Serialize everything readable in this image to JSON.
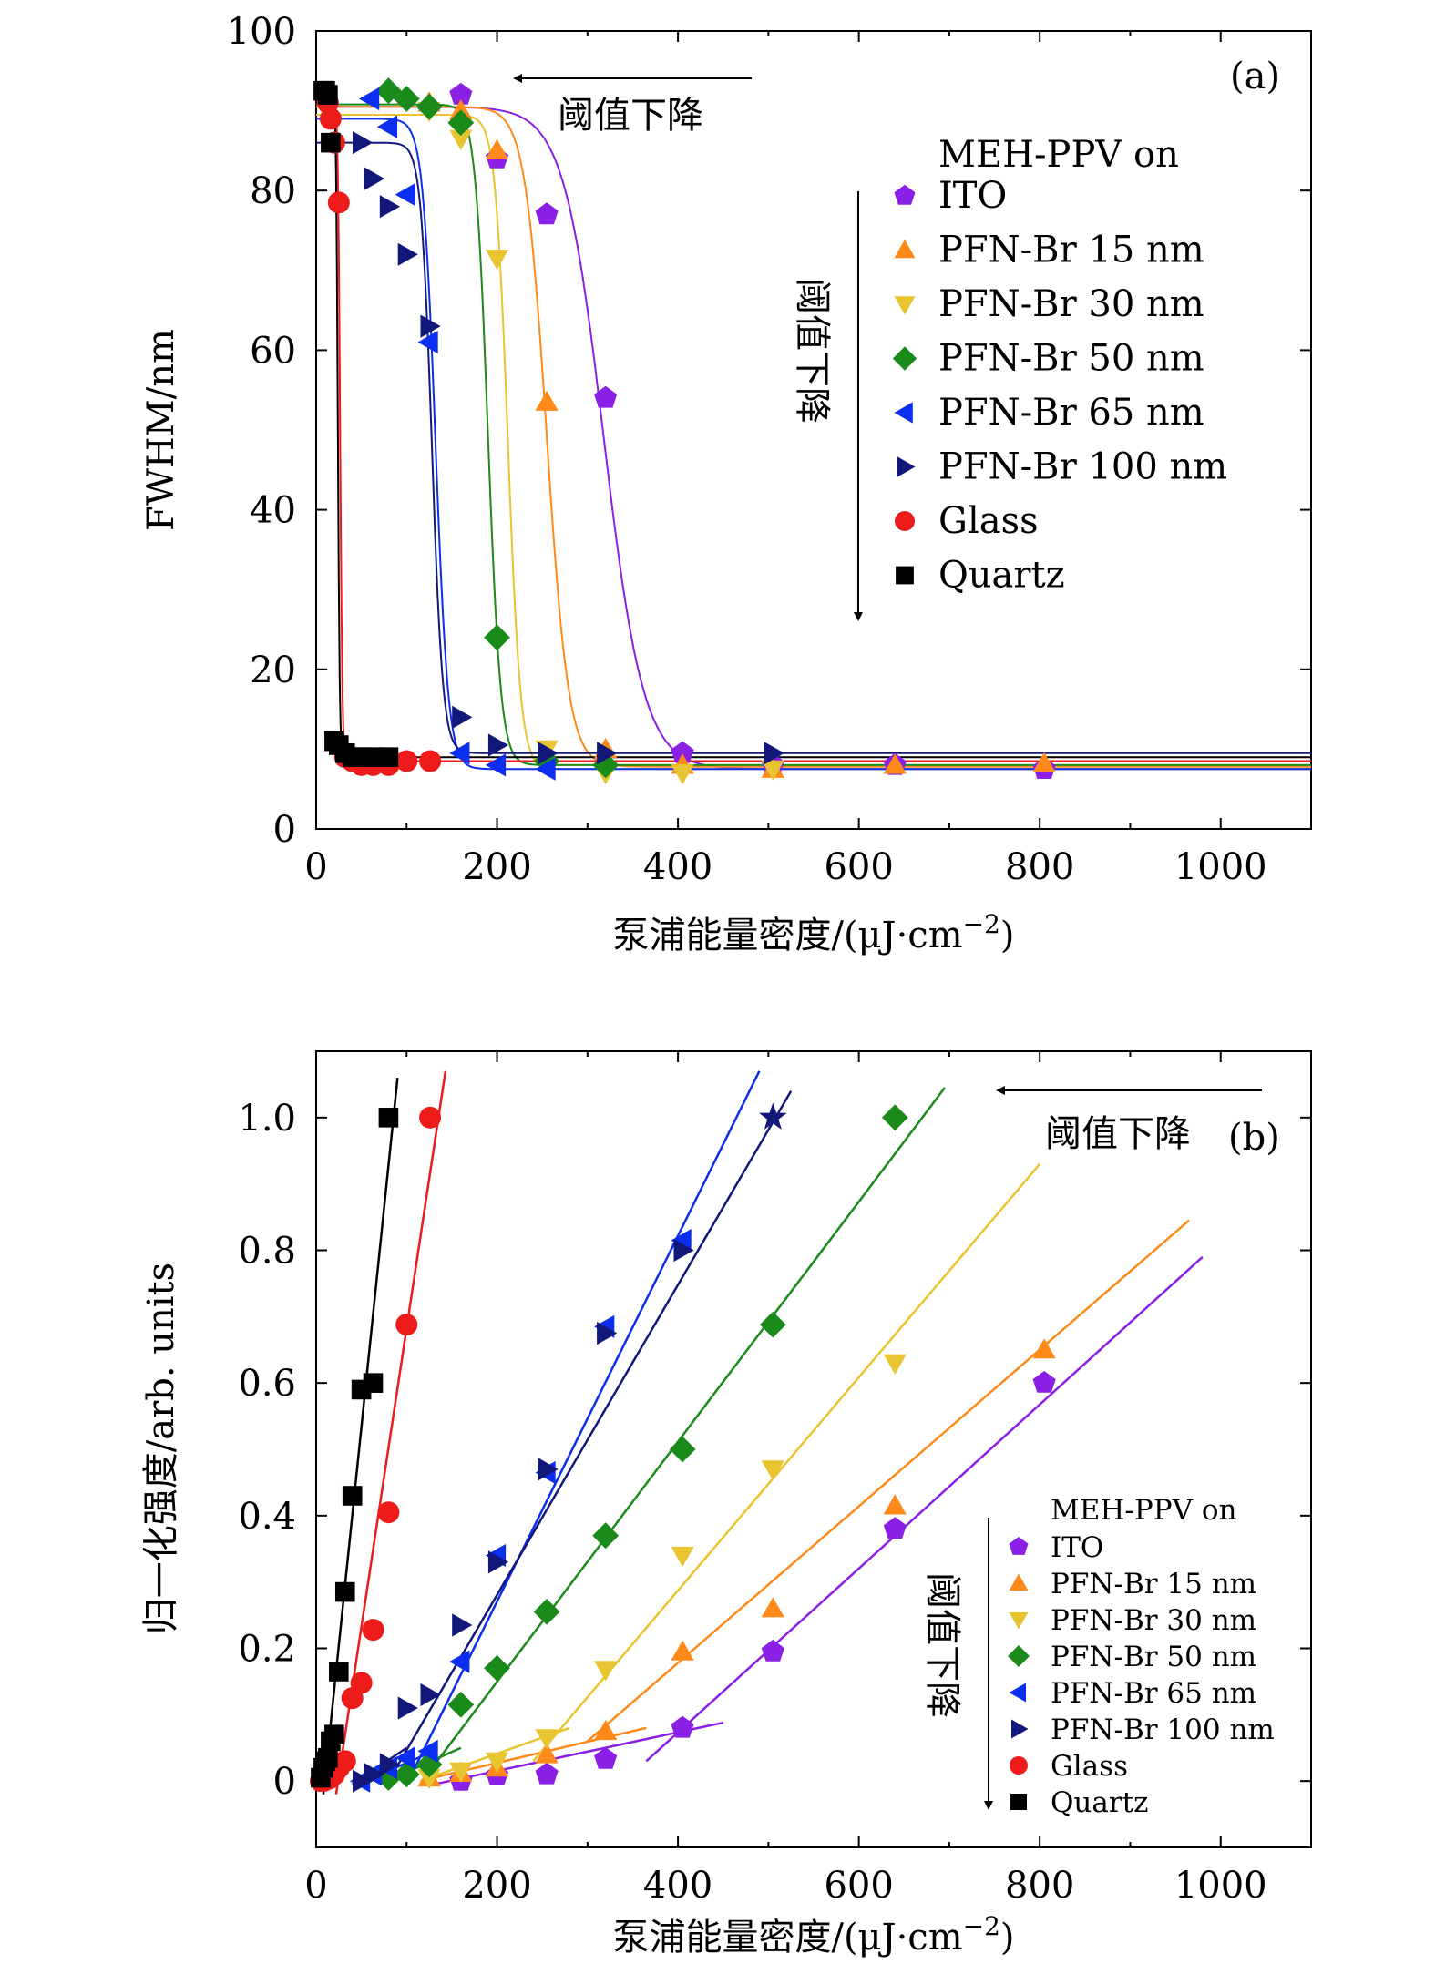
{
  "chart_data": [
    {
      "id": "a",
      "type": "scatter",
      "panel_label": "(a)",
      "xlabel": "泵浦能量密度/(μJ·cm",
      "xlabel_exp": "−2",
      "xlabel_close": ")",
      "ylabel": "FWHM/nm",
      "xlim": [
        0,
        1100
      ],
      "ylim": [
        0,
        100
      ],
      "xticks": [
        0,
        200,
        400,
        600,
        800,
        1000
      ],
      "yticks": [
        0,
        20,
        40,
        60,
        80,
        100
      ],
      "annotations": {
        "horizontal_arrow": "阈值下降",
        "vertical_arrow": "阈值下降"
      },
      "legend_title": "MEH-PPV on",
      "series": [
        {
          "name": "ITO",
          "marker": "pentagon",
          "color": "#8a1fe6",
          "x": [
            160,
            200,
            255,
            320,
            405,
            505,
            640,
            805
          ],
          "y": [
            92,
            84,
            77,
            54,
            9.5,
            8,
            8,
            7.5
          ],
          "fit": {
            "top": 90.5,
            "bottom": 7.5,
            "x0": 318,
            "w": 22
          }
        },
        {
          "name": "PFN-Br 15 nm",
          "marker": "triangle-up",
          "color": "#ff8a1a",
          "x": [
            125,
            160,
            200,
            255,
            320,
            405,
            505,
            640,
            805
          ],
          "y": [
            91,
            90,
            85,
            53.5,
            10,
            8,
            7.5,
            8,
            8.2
          ],
          "fit": {
            "top": 90.5,
            "bottom": 7.8,
            "x0": 255,
            "w": 12
          }
        },
        {
          "name": "PFN-Br 30 nm",
          "marker": "triangle-down",
          "color": "#e8c530",
          "x": [
            125,
            160,
            200,
            255,
            320,
            405,
            505
          ],
          "y": [
            90,
            86.5,
            71.5,
            10,
            7,
            7,
            7.5
          ],
          "fit": {
            "top": 89.5,
            "bottom": 7.5,
            "x0": 212,
            "w": 7
          }
        },
        {
          "name": "PFN-Br 50 nm",
          "marker": "diamond",
          "color": "#1a8a1a",
          "x": [
            80,
            100,
            125,
            160,
            200,
            255,
            320
          ],
          "y": [
            92.5,
            91.5,
            90.5,
            88.5,
            24,
            8.5,
            8
          ],
          "fit": {
            "top": 90.8,
            "bottom": 8,
            "x0": 190,
            "w": 7
          }
        },
        {
          "name": "PFN-Br 65 nm",
          "marker": "triangle-left",
          "color": "#0c2ef0",
          "x": [
            60,
            80,
            100,
            125,
            160,
            200,
            255
          ],
          "y": [
            91.5,
            88,
            79.5,
            61,
            9.5,
            8,
            7.5
          ],
          "fit": {
            "top": 89,
            "bottom": 7.5,
            "x0": 132,
            "w": 7
          }
        },
        {
          "name": "PFN-Br 100 nm",
          "marker": "triangle-right",
          "color": "#12187a",
          "x": [
            50,
            63,
            80,
            100,
            125,
            160,
            200,
            255,
            320,
            505
          ],
          "y": [
            86,
            81.5,
            78,
            72,
            63,
            14,
            10.5,
            9.5,
            9.5,
            9.5
          ],
          "fit": {
            "top": 86,
            "bottom": 9.5,
            "x0": 128,
            "w": 6
          }
        },
        {
          "name": "Glass",
          "marker": "circle",
          "color": "#ee1b1b",
          "x": [
            10,
            13,
            16,
            20,
            25,
            32,
            40,
            50,
            63,
            80,
            100,
            126
          ],
          "y": [
            92,
            91,
            89,
            86,
            78.5,
            9,
            8.5,
            8,
            8,
            8,
            8.5,
            8.5
          ],
          "fit": {
            "top": 91.5,
            "bottom": 8.5,
            "x0": 26.5,
            "w": 1.2
          }
        },
        {
          "name": "Quartz",
          "marker": "square",
          "color": "#000000",
          "x": [
            8,
            10,
            13,
            16,
            20,
            25,
            32,
            40,
            50,
            63,
            80
          ],
          "y": [
            92.5,
            92.5,
            92,
            86,
            11,
            10.5,
            9.5,
            9,
            9,
            9,
            9
          ],
          "fit": {
            "top": 92.5,
            "bottom": 9,
            "x0": 24,
            "w": 1
          }
        }
      ]
    },
    {
      "id": "b",
      "type": "scatter",
      "panel_label": "(b)",
      "xlabel": "泵浦能量密度/(μJ·cm",
      "xlabel_exp": "−2",
      "xlabel_close": ")",
      "ylabel": "归一化强度/arb. units",
      "xlim": [
        0,
        1100
      ],
      "ylim": [
        -0.1,
        1.1
      ],
      "xticks": [
        0,
        200,
        400,
        600,
        800,
        1000
      ],
      "yticks": [
        0,
        0.2,
        0.4,
        0.6,
        0.8,
        1.0
      ],
      "ytick_labels": [
        "0",
        "0.2",
        "0.4",
        "0.6",
        "0.8",
        "1.0"
      ],
      "annotations": {
        "horizontal_arrow": "阈值下降",
        "vertical_arrow": "阈值下降"
      },
      "legend_title": "MEH-PPV on",
      "series": [
        {
          "name": "ITO",
          "marker": "pentagon",
          "color": "#8a1fe6",
          "x": [
            160,
            200,
            255,
            320,
            405,
            505,
            640,
            805
          ],
          "y": [
            0,
            0.008,
            0.01,
            0.033,
            0.08,
            0.195,
            0.38,
            0.6
          ],
          "lines": [
            [
              [
                130,
                -0.005
              ],
              [
                450,
                0.088
              ]
            ],
            [
              [
                365,
                0.03
              ],
              [
                980,
                0.79
              ]
            ]
          ]
        },
        {
          "name": "PFN-Br 15 nm",
          "marker": "triangle-up",
          "color": "#ff8a1a",
          "x": [
            125,
            160,
            200,
            255,
            320,
            405,
            505,
            640,
            805
          ],
          "y": [
            0.005,
            0.012,
            0.02,
            0.04,
            0.075,
            0.195,
            0.26,
            0.415,
            0.65
          ],
          "lines": [
            [
              [
                120,
                0.002
              ],
              [
                365,
                0.08
              ]
            ],
            [
              [
                300,
                0.06
              ],
              [
                965,
                0.845
              ]
            ]
          ]
        },
        {
          "name": "PFN-Br 30 nm",
          "marker": "triangle-down",
          "color": "#e8c530",
          "x": [
            125,
            160,
            200,
            255,
            320,
            405,
            505,
            640
          ],
          "y": [
            0.005,
            0.015,
            0.03,
            0.065,
            0.168,
            0.34,
            0.47,
            0.63
          ],
          "lines": [
            [
              [
                115,
                0.0
              ],
              [
                280,
                0.08
              ]
            ],
            [
              [
                240,
                0.03
              ],
              [
                800,
                0.93
              ]
            ]
          ]
        },
        {
          "name": "PFN-Br 50 nm",
          "marker": "diamond",
          "color": "#1a8a1a",
          "x": [
            80,
            100,
            125,
            160,
            200,
            255,
            320,
            405,
            505,
            640
          ],
          "y": [
            0.005,
            0.01,
            0.025,
            0.115,
            0.17,
            0.255,
            0.37,
            0.5,
            0.688,
            1.0
          ],
          "lines": [
            [
              [
                70,
                -0.005
              ],
              [
                160,
                0.05
              ]
            ],
            [
              [
                120,
                0.005
              ],
              [
                695,
                1.045
              ]
            ]
          ]
        },
        {
          "name": "PFN-Br 65 nm",
          "marker": "triangle-left",
          "color": "#0c2ef0",
          "x": [
            50,
            63,
            80,
            100,
            125,
            160,
            200,
            255,
            320,
            405
          ],
          "y": [
            0.0,
            0.01,
            0.02,
            0.035,
            0.045,
            0.18,
            0.34,
            0.465,
            0.685,
            0.815
          ],
          "lines": [
            [
              [
                45,
                -0.005
              ],
              [
                130,
                0.045
              ]
            ],
            [
              [
                100,
                -0.005
              ],
              [
                490,
                1.07
              ]
            ]
          ]
        },
        {
          "name": "PFN-Br 100 nm",
          "marker": "triangle-right",
          "color": "#12187a",
          "x": [
            50,
            63,
            80,
            100,
            125,
            160,
            200,
            255,
            320,
            405
          ],
          "y": [
            0.0,
            0.01,
            0.025,
            0.11,
            0.13,
            0.235,
            0.33,
            0.47,
            0.675,
            0.8
          ],
          "lines": [
            [
              [
                40,
                -0.005
              ],
              [
                100,
                0.05
              ]
            ],
            [
              [
                80,
                0.0
              ],
              [
                525,
                1.04
              ]
            ]
          ]
        },
        {
          "name": "Glass",
          "marker": "circle",
          "color": "#ee1b1b",
          "x": [
            5,
            8,
            10,
            13,
            16,
            20,
            25,
            32,
            40,
            50,
            63,
            80,
            100,
            126
          ],
          "y": [
            0,
            0,
            0.002,
            0.003,
            0.005,
            0.01,
            0.02,
            0.03,
            0.125,
            0.148,
            0.228,
            0.405,
            0.688,
            1.0
          ],
          "lines": [
            [
              [
                0,
                0
              ],
              [
                30,
                0.015
              ]
            ],
            [
              [
                22,
                -0.02
              ],
              [
                143,
                1.07
              ]
            ]
          ]
        },
        {
          "name": "Quartz",
          "marker": "square",
          "color": "#000000",
          "x": [
            5,
            8,
            10,
            13,
            16,
            20,
            25,
            32,
            40,
            50,
            63,
            80
          ],
          "y": [
            0.005,
            0.02,
            0.03,
            0.035,
            0.06,
            0.07,
            0.165,
            0.285,
            0.43,
            0.59,
            0.6,
            1.0
          ],
          "lines": [
            [
              [
                0,
                0.0
              ],
              [
                20,
                0.03
              ]
            ],
            [
              [
                8,
                -0.02
              ],
              [
                90,
                1.06
              ]
            ]
          ]
        }
      ],
      "star_marker": {
        "x": 505,
        "y": 1.0,
        "color": "#12187a"
      }
    }
  ]
}
